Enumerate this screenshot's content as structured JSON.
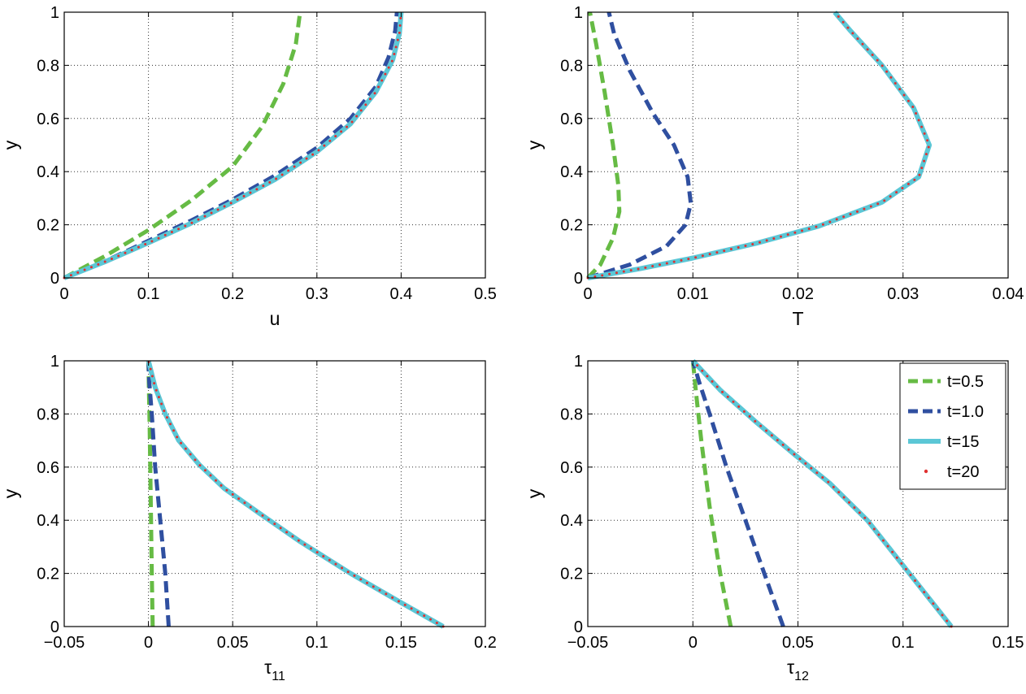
{
  "styles": {
    "t05": {
      "color": "#66bb44",
      "kind": "dash",
      "width": 5
    },
    "t10": {
      "color": "#2f4fa0",
      "kind": "dash",
      "width": 5
    },
    "t15": {
      "color": "#5bc7d6",
      "kind": "solid",
      "width": 6
    },
    "t20": {
      "color": "#e03030",
      "kind": "dot",
      "width": 3
    }
  },
  "legend": {
    "placement": "top-right of lower-right subplot",
    "entries": [
      {
        "key": "t05",
        "label": "t=0.5"
      },
      {
        "key": "t10",
        "label": "t=1.0"
      },
      {
        "key": "t15",
        "label": "t=15"
      },
      {
        "key": "t20",
        "label": "t=20"
      }
    ]
  },
  "chart_data": [
    {
      "type": "line",
      "xlabel": "u",
      "ylabel": "y",
      "xlim": [
        0,
        0.5
      ],
      "ylim": [
        0,
        1
      ],
      "xticks": [
        "0",
        "0.1",
        "0.2",
        "0.3",
        "0.4",
        "0.5"
      ],
      "yticks": [
        "0",
        "0.2",
        "0.4",
        "0.6",
        "0.8",
        "1"
      ],
      "grid": true,
      "series": [
        {
          "key": "t05",
          "x": [
            0,
            0.05,
            0.1,
            0.15,
            0.2,
            0.235,
            0.26,
            0.275,
            0.28
          ],
          "y": [
            0,
            0.085,
            0.18,
            0.29,
            0.42,
            0.57,
            0.73,
            0.88,
            1.0
          ]
        },
        {
          "key": "t10",
          "x": [
            0,
            0.05,
            0.1,
            0.15,
            0.2,
            0.25,
            0.3,
            0.34,
            0.37,
            0.385,
            0.393,
            0.395
          ],
          "y": [
            0,
            0.065,
            0.14,
            0.215,
            0.295,
            0.385,
            0.49,
            0.6,
            0.72,
            0.83,
            0.93,
            1.0
          ]
        },
        {
          "key": "t15",
          "x": [
            0,
            0.05,
            0.1,
            0.15,
            0.2,
            0.25,
            0.3,
            0.34,
            0.37,
            0.39,
            0.398,
            0.4
          ],
          "y": [
            0,
            0.063,
            0.132,
            0.205,
            0.285,
            0.37,
            0.475,
            0.58,
            0.7,
            0.82,
            0.92,
            1.0
          ]
        },
        {
          "key": "t20",
          "x": [
            0,
            0.05,
            0.1,
            0.15,
            0.2,
            0.25,
            0.3,
            0.34,
            0.37,
            0.39,
            0.398,
            0.4
          ],
          "y": [
            0,
            0.063,
            0.132,
            0.205,
            0.285,
            0.37,
            0.475,
            0.58,
            0.7,
            0.82,
            0.92,
            1.0
          ]
        }
      ]
    },
    {
      "type": "line",
      "xlabel": "T",
      "ylabel": "y",
      "xlim": [
        0,
        0.04
      ],
      "ylim": [
        0,
        1
      ],
      "xticks": [
        "0",
        "0.01",
        "0.02",
        "0.03",
        "0.04"
      ],
      "yticks": [
        "0",
        "0.2",
        "0.4",
        "0.6",
        "0.8",
        "1"
      ],
      "grid": true,
      "series": [
        {
          "key": "t05",
          "x": [
            0,
            0.0012,
            0.0024,
            0.003,
            0.0029,
            0.0024,
            0.0016,
            0.0008,
            0.0002
          ],
          "y": [
            0,
            0.05,
            0.15,
            0.25,
            0.35,
            0.5,
            0.7,
            0.88,
            1.0
          ]
        },
        {
          "key": "t10",
          "x": [
            0,
            0.004,
            0.0075,
            0.0093,
            0.0098,
            0.0095,
            0.0082,
            0.0062,
            0.004,
            0.0025,
            0.002
          ],
          "y": [
            0,
            0.05,
            0.12,
            0.2,
            0.28,
            0.38,
            0.5,
            0.62,
            0.78,
            0.92,
            1.0
          ]
        },
        {
          "key": "t15",
          "x": [
            0,
            0.005,
            0.01,
            0.016,
            0.022,
            0.028,
            0.0315,
            0.0325,
            0.031,
            0.028,
            0.025,
            0.0235
          ],
          "y": [
            0,
            0.035,
            0.075,
            0.13,
            0.195,
            0.285,
            0.38,
            0.5,
            0.64,
            0.8,
            0.93,
            1.0
          ]
        },
        {
          "key": "t20",
          "x": [
            0,
            0.005,
            0.01,
            0.016,
            0.022,
            0.028,
            0.0315,
            0.0325,
            0.031,
            0.028,
            0.025,
            0.0235
          ],
          "y": [
            0,
            0.035,
            0.075,
            0.13,
            0.195,
            0.285,
            0.38,
            0.5,
            0.64,
            0.8,
            0.93,
            1.0
          ]
        }
      ]
    },
    {
      "type": "line",
      "xlabel": "τ",
      "xlabel_sub": "11",
      "ylabel": "y",
      "xlim": [
        -0.05,
        0.2
      ],
      "ylim": [
        0,
        1
      ],
      "xticks": [
        "−0.05",
        "0",
        "0.05",
        "0.1",
        "0.15",
        "0.2"
      ],
      "yticks": [
        "0",
        "0.2",
        "0.4",
        "0.6",
        "0.8",
        "1"
      ],
      "grid": true,
      "series": [
        {
          "key": "t05",
          "x": [
            0.0025,
            0.002,
            0.0013,
            0.0007,
            0.0002,
            0
          ],
          "y": [
            0,
            0.2,
            0.5,
            0.75,
            0.92,
            1.0
          ]
        },
        {
          "key": "t10",
          "x": [
            0.012,
            0.01,
            0.007,
            0.004,
            0.002,
            0.0005,
            0
          ],
          "y": [
            0,
            0.2,
            0.4,
            0.6,
            0.8,
            0.92,
            1.0
          ]
        },
        {
          "key": "t15",
          "x": [
            0.175,
            0.15,
            0.12,
            0.09,
            0.065,
            0.045,
            0.03,
            0.018,
            0.01,
            0.004,
            0
          ],
          "y": [
            0,
            0.09,
            0.2,
            0.32,
            0.43,
            0.52,
            0.61,
            0.7,
            0.8,
            0.9,
            1.0
          ]
        },
        {
          "key": "t20",
          "x": [
            0.175,
            0.15,
            0.12,
            0.09,
            0.065,
            0.045,
            0.03,
            0.018,
            0.01,
            0.004,
            0
          ],
          "y": [
            0,
            0.09,
            0.2,
            0.32,
            0.43,
            0.52,
            0.61,
            0.7,
            0.8,
            0.9,
            1.0
          ]
        }
      ]
    },
    {
      "type": "line",
      "xlabel": "τ",
      "xlabel_sub": "12",
      "ylabel": "y",
      "xlim": [
        -0.05,
        0.15
      ],
      "ylim": [
        0,
        1
      ],
      "xticks": [
        "−0.05",
        "0",
        "0.05",
        "0.1",
        "0.15"
      ],
      "yticks": [
        "0",
        "0.2",
        "0.4",
        "0.6",
        "0.8",
        "1"
      ],
      "grid": true,
      "series": [
        {
          "key": "t05",
          "x": [
            0.018,
            0.013,
            0.008,
            0.004,
            0.0015,
            0
          ],
          "y": [
            0,
            0.2,
            0.45,
            0.7,
            0.88,
            1.0
          ]
        },
        {
          "key": "t10",
          "x": [
            0.043,
            0.034,
            0.025,
            0.016,
            0.008,
            0.003,
            0
          ],
          "y": [
            0,
            0.2,
            0.4,
            0.6,
            0.8,
            0.92,
            1.0
          ]
        },
        {
          "key": "t15",
          "x": [
            0.123,
            0.11,
            0.1,
            0.083,
            0.065,
            0.048,
            0.03,
            0.013,
            0
          ],
          "y": [
            0,
            0.13,
            0.23,
            0.4,
            0.54,
            0.65,
            0.77,
            0.89,
            1.0
          ]
        },
        {
          "key": "t20",
          "x": [
            0.123,
            0.11,
            0.1,
            0.083,
            0.065,
            0.048,
            0.03,
            0.013,
            0
          ],
          "y": [
            0,
            0.13,
            0.23,
            0.4,
            0.54,
            0.65,
            0.77,
            0.89,
            1.0
          ]
        }
      ]
    }
  ]
}
